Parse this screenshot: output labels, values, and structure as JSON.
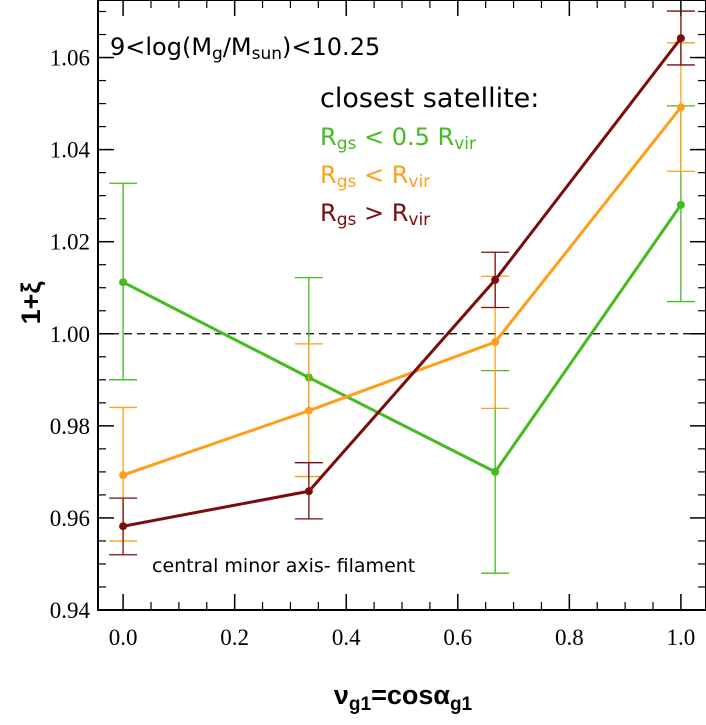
{
  "chart_data": {
    "type": "line",
    "x": [
      0.0,
      0.333,
      0.667,
      1.0
    ],
    "xlim": [
      -0.045,
      1.045
    ],
    "ylim": [
      0.94,
      1.0725
    ],
    "xticks": [
      0.0,
      0.2,
      0.4,
      0.6,
      0.8,
      1.0
    ],
    "xtick_labels": [
      "0.0",
      "0.2",
      "0.4",
      "0.6",
      "0.8",
      "1.0"
    ],
    "yticks": [
      0.94,
      0.96,
      0.98,
      1.0,
      1.02,
      1.04,
      1.06
    ],
    "ytick_labels": [
      "0.94",
      "0.96",
      "0.98",
      "1.00",
      "1.02",
      "1.04",
      "1.06"
    ],
    "reference_line": 1.0,
    "ylabel": "1+ξ",
    "xlabel_parts": {
      "nu": "ν",
      "sub1": "g1",
      "eq": "=cosα",
      "sub2": "g1"
    },
    "mass_bin": {
      "pre": "9<log(M",
      "sub1": "g",
      "mid": "/M",
      "sub2": "sun",
      "post": ")<10.25"
    },
    "legend_title": "closest satellite:",
    "note": "central minor axis- filament",
    "series": [
      {
        "name": "Rgs < 0.5 Rvir",
        "legend": {
          "r": "R",
          "sub1": "gs",
          "op": " < 0.5 R",
          "sub2": "vir"
        },
        "color": "#44bb1f",
        "values": [
          1.0112,
          0.9905,
          0.97,
          1.028
        ],
        "err_low": [
          0.99,
          0.969,
          0.948,
          1.007
        ],
        "err_high": [
          1.0327,
          1.0122,
          0.992,
          1.0495
        ]
      },
      {
        "name": "Rgs < Rvir",
        "legend": {
          "r": "R",
          "sub1": "gs",
          "op": " < R",
          "sub2": "vir"
        },
        "color": "#ff9f19",
        "values": [
          0.9693,
          0.9833,
          0.9982,
          1.0492
        ],
        "err_low": [
          0.955,
          0.969,
          0.9838,
          1.0353
        ],
        "err_high": [
          0.984,
          0.9978,
          1.0125,
          1.0632
        ]
      },
      {
        "name": "Rgs > Rvir",
        "legend": {
          "r": "R",
          "sub1": "gs",
          "op": " > R",
          "sub2": "vir"
        },
        "color": "#7a0c0c",
        "values": [
          0.9582,
          0.9658,
          1.0117,
          1.0642
        ],
        "err_low": [
          0.952,
          0.9598,
          1.0057,
          1.0584
        ],
        "err_high": [
          0.9643,
          0.972,
          1.0177,
          1.0701
        ]
      }
    ]
  }
}
